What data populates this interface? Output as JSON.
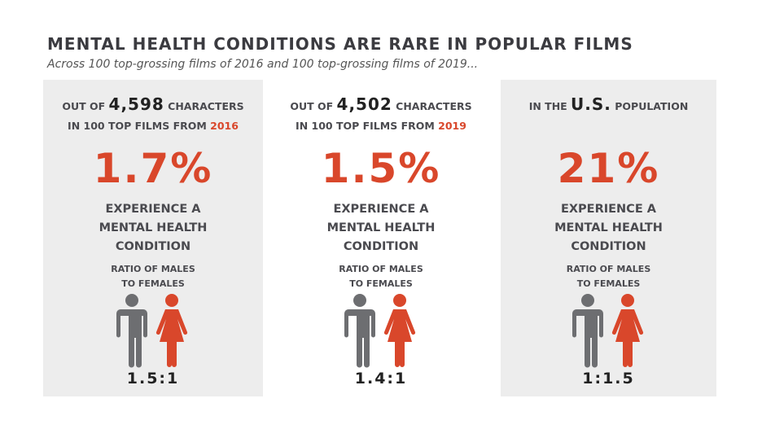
{
  "title": "MENTAL HEALTH CONDITIONS ARE RARE IN POPULAR FILMS",
  "subtitle": "Across 100 top-grossing films of 2016 and 100 top-grossing films of 2019...",
  "colors": {
    "accent": "#d9472b",
    "male": "#6d6e71",
    "panel": "#ededed"
  },
  "panels": [
    {
      "pre": "OUT OF ",
      "num": "4,598",
      "post": " CHARACTERS",
      "line2": "IN 100 TOP FILMS FROM ",
      "year": "2016",
      "percent": "1.7%",
      "experience": "EXPERIENCE A MENTAL HEALTH CONDITION",
      "ratio_label": "RATIO OF MALES TO FEMALES",
      "ratio": "1.5:1"
    },
    {
      "pre": "OUT OF ",
      "num": "4,502",
      "post": " CHARACTERS",
      "line2": "IN 100 TOP FILMS FROM ",
      "year": "2019",
      "percent": "1.5%",
      "experience": "EXPERIENCE A MENTAL HEALTH CONDITION",
      "ratio_label": "RATIO OF MALES TO FEMALES",
      "ratio": "1.4:1"
    },
    {
      "pre": "IN THE ",
      "num": "U.S.",
      "post": " POPULATION",
      "line2": "",
      "year": "",
      "percent": "21%",
      "experience": "EXPERIENCE A MENTAL HEALTH CONDITION",
      "ratio_label": "RATIO OF MALES TO FEMALES",
      "ratio": "1:1.5"
    }
  ]
}
